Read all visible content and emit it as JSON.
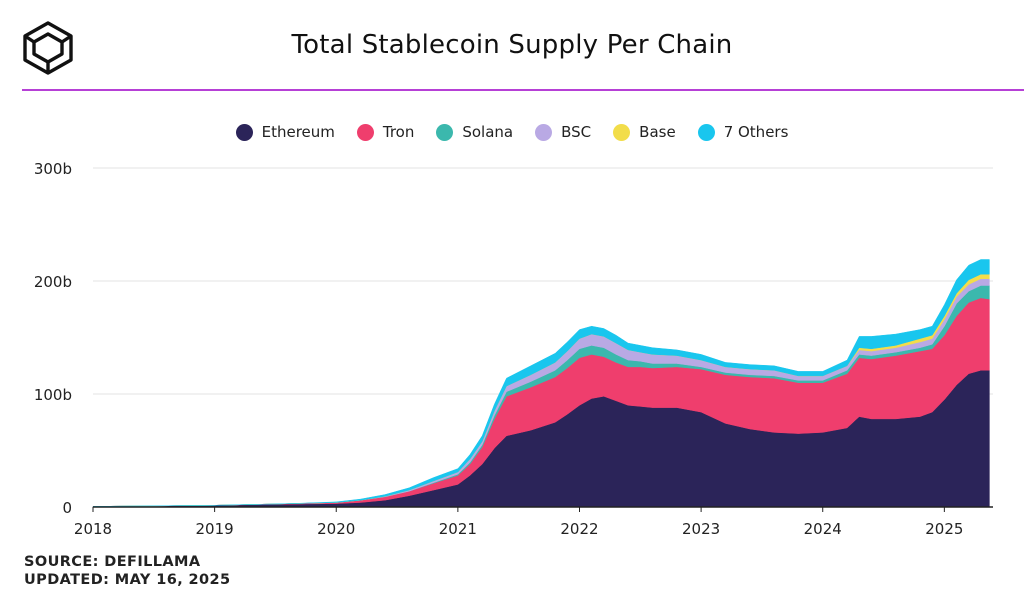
{
  "header": {
    "title": "Total Stablecoin Supply Per Chain"
  },
  "colors": {
    "accent_rule": "#b640d6",
    "grid": "#e3e3e3",
    "logo": "#111111"
  },
  "icons": {
    "brand_logo": "cube-logo-icon"
  },
  "footer": {
    "source": "SOURCE: DEFILLAMA",
    "updated": "UPDATED: MAY 16, 2025"
  },
  "chart_data": {
    "type": "area",
    "stacked": true,
    "title": "Total Stablecoin Supply Per Chain",
    "xlabel": "",
    "ylabel": "",
    "x_unit": "year",
    "xlim": [
      2018.0,
      2025.4
    ],
    "ylim": [
      0,
      300
    ],
    "y_unit": "billion USD",
    "yticks": [
      0,
      100,
      200,
      300
    ],
    "ytick_labels": [
      "0",
      "100b",
      "200b",
      "300b"
    ],
    "xticks": [
      2018,
      2019,
      2020,
      2021,
      2022,
      2023,
      2024,
      2025
    ],
    "xtick_labels": [
      "2018",
      "2019",
      "2020",
      "2021",
      "2022",
      "2023",
      "2024",
      "2025"
    ],
    "grid": true,
    "legend_position": "top-center",
    "x": [
      2018.0,
      2018.5,
      2019.0,
      2019.3,
      2019.6,
      2020.0,
      2020.2,
      2020.4,
      2020.6,
      2020.8,
      2021.0,
      2021.1,
      2021.2,
      2021.3,
      2021.4,
      2021.6,
      2021.8,
      2021.9,
      2022.0,
      2022.1,
      2022.2,
      2022.3,
      2022.4,
      2022.5,
      2022.6,
      2022.8,
      2023.0,
      2023.2,
      2023.4,
      2023.6,
      2023.8,
      2024.0,
      2024.2,
      2024.3,
      2024.4,
      2024.6,
      2024.8,
      2024.9,
      2025.0,
      2025.1,
      2025.2,
      2025.3,
      2025.37
    ],
    "series": [
      {
        "name": "Ethereum",
        "color": "#2b2459",
        "values": [
          0.5,
          1,
          1.5,
          2,
          2.5,
          3,
          4,
          6,
          10,
          15,
          20,
          28,
          38,
          52,
          63,
          68,
          75,
          82,
          90,
          96,
          98,
          94,
          90,
          89,
          88,
          88,
          84,
          74,
          69,
          66,
          65,
          66,
          70,
          80,
          78,
          78,
          80,
          84,
          95,
          108,
          118,
          121,
          121
        ]
      },
      {
        "name": "Tron",
        "color": "#ef3e6d",
        "values": [
          0,
          0,
          0,
          0.2,
          0.4,
          1,
          2,
          3,
          4,
          6,
          8,
          10,
          15,
          26,
          35,
          38,
          40,
          41,
          42,
          39,
          35,
          34,
          34,
          35,
          35,
          36,
          38,
          43,
          46,
          48,
          45,
          44,
          48,
          52,
          53,
          56,
          58,
          56,
          57,
          61,
          63,
          64,
          63
        ]
      },
      {
        "name": "Solana",
        "color": "#3bb8ad",
        "values": [
          0,
          0,
          0,
          0,
          0,
          0,
          0,
          0,
          0,
          0.5,
          1,
          1.5,
          2,
          3,
          4,
          5,
          6,
          7,
          8,
          8,
          8,
          7,
          6,
          5,
          4,
          3,
          2,
          2,
          2,
          2,
          2,
          2,
          3,
          3,
          3,
          3,
          3,
          4,
          8,
          11,
          10,
          11,
          12
        ]
      },
      {
        "name": "BSC",
        "color": "#b9a9e4",
        "values": [
          0,
          0,
          0,
          0,
          0,
          0,
          0,
          0.5,
          1,
          1.5,
          2,
          3,
          3,
          4,
          5,
          6,
          7,
          8,
          9,
          10,
          10,
          10,
          9,
          8,
          8,
          7,
          6,
          5,
          5,
          5,
          4,
          4,
          4,
          4,
          4,
          4,
          5,
          5,
          6,
          6,
          6,
          6,
          6
        ]
      },
      {
        "name": "Base",
        "color": "#f2dd4a",
        "values": [
          0,
          0,
          0,
          0,
          0,
          0,
          0,
          0,
          0,
          0,
          0,
          0,
          0,
          0,
          0,
          0,
          0,
          0,
          0,
          0,
          0,
          0,
          0,
          0,
          0,
          0,
          0,
          0,
          0,
          0,
          0,
          0,
          0,
          2,
          2,
          2,
          3,
          3,
          3,
          3,
          4,
          4,
          4
        ]
      },
      {
        "name": "7 Others",
        "color": "#19c6ee",
        "values": [
          0,
          0,
          0,
          0,
          0,
          0.5,
          1,
          1.5,
          2,
          3,
          3,
          4,
          5,
          6,
          7,
          8,
          8,
          8,
          8,
          7,
          7,
          7,
          6,
          6,
          6,
          5,
          5,
          4,
          4,
          4,
          4,
          4,
          5,
          10,
          11,
          10,
          8,
          8,
          10,
          12,
          13,
          13,
          13
        ]
      }
    ]
  }
}
